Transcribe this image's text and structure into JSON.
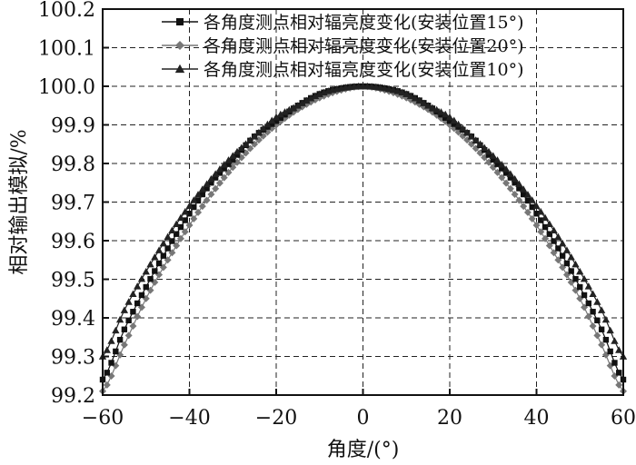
{
  "chart_data": {
    "type": "line",
    "xlabel": "角度/(°)",
    "ylabel": "相对输出模拟/%",
    "xlim": [
      -60,
      60
    ],
    "ylim": [
      99.2,
      100.2
    ],
    "x_ticks": [
      "−60",
      "−40",
      "−20",
      "0",
      "20",
      "40",
      "60"
    ],
    "y_ticks": [
      "99.2",
      "99.3",
      "99.4",
      "99.5",
      "99.6",
      "99.7",
      "99.8",
      "99.9",
      "100.0",
      "100.1",
      "100.2"
    ],
    "grid": true,
    "grid_style": "dashed",
    "legend_position": "top-right",
    "x": [
      -60,
      -55,
      -50,
      -45,
      -40,
      -35,
      -30,
      -25,
      -20,
      -15,
      -10,
      -5,
      0,
      5,
      10,
      15,
      20,
      25,
      30,
      35,
      40,
      45,
      50,
      55,
      60
    ],
    "series": [
      {
        "name": "各角度测点相对辐亮度变化(安装位置15°)",
        "marker": "square",
        "color": "#111111",
        "values": [
          99.24,
          99.37,
          99.48,
          99.58,
          99.67,
          99.75,
          99.81,
          99.87,
          99.91,
          99.95,
          99.98,
          99.995,
          100.0,
          99.995,
          99.98,
          99.95,
          99.91,
          99.87,
          99.81,
          99.75,
          99.67,
          99.58,
          99.48,
          99.37,
          99.24
        ]
      },
      {
        "name": "各角度测点相对辐亮度变化(安装位置20°)",
        "marker": "diamond",
        "color": "#777777",
        "values": [
          99.21,
          99.33,
          99.45,
          99.55,
          99.64,
          99.72,
          99.79,
          99.85,
          99.9,
          99.94,
          99.97,
          99.99,
          100.0,
          99.99,
          99.97,
          99.94,
          99.9,
          99.85,
          99.79,
          99.72,
          99.64,
          99.55,
          99.45,
          99.33,
          99.21
        ]
      },
      {
        "name": "各角度测点相对辐亮度变化(安装位置10°)",
        "marker": "triangle",
        "color": "#222222",
        "values": [
          99.3,
          99.42,
          99.52,
          99.61,
          99.69,
          99.76,
          99.82,
          99.87,
          99.92,
          99.95,
          99.98,
          99.995,
          100.0,
          99.995,
          99.98,
          99.95,
          99.92,
          99.87,
          99.82,
          99.76,
          99.69,
          99.61,
          99.52,
          99.42,
          99.3
        ]
      }
    ]
  }
}
